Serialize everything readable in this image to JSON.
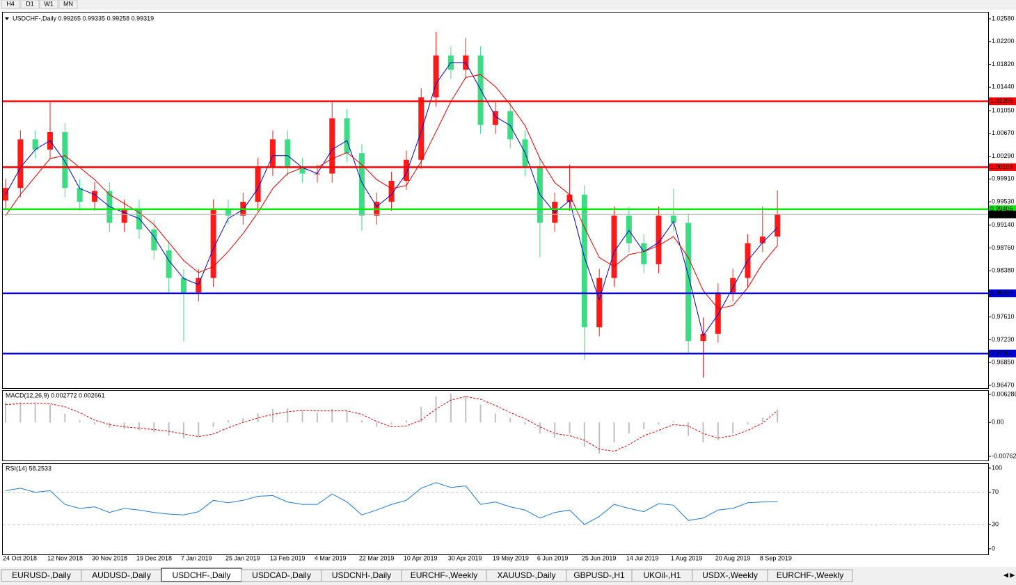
{
  "toolbar": {
    "timeframes": [
      "H4",
      "D1",
      "W1",
      "MN"
    ]
  },
  "chart_data": [
    {
      "type": "candlestick",
      "title": "USDCHF-,Daily  0.99265 0.99335 0.99258 0.99319",
      "categories": [
        "24 Oct 2018",
        null,
        null,
        "12 Nov 2018",
        null,
        null,
        "30 Nov 2018",
        null,
        null,
        "19 Dec 2018",
        null,
        null,
        "7 Jan 2019",
        null,
        null,
        "25 Jan 2019",
        null,
        null,
        "13 Feb 2019",
        null,
        null,
        "4 Mar 2019",
        null,
        null,
        "22 Mar 2019",
        null,
        null,
        "10 Apr 2019",
        null,
        null,
        "30 Apr 2019",
        null,
        null,
        "19 May 2019",
        null,
        null,
        "6 Jun 2019",
        null,
        null,
        "25 Jun 2019",
        null,
        null,
        "14 Jul 2019",
        null,
        null,
        "1 Aug 2019",
        null,
        null,
        "20 Aug 2019",
        null,
        null,
        "8 Sep 2019",
        null
      ],
      "open": [
        0.9955,
        0.9976,
        1.0057,
        1.004,
        1.0069,
        0.9976,
        0.9953,
        0.9971,
        0.9918,
        0.9942,
        0.9907,
        0.9872,
        0.9826,
        0.9802,
        0.9826,
        0.9942,
        0.993,
        0.9953,
        1.0011,
        1.0057,
        1.0011,
        1.0,
        1.0,
        1.0092,
        1.0034,
        0.993,
        0.9953,
        0.9988,
        1.0023,
        1.0127,
        1.0197,
        1.0173,
        1.0197,
        1.0081,
        1.0104,
        1.0057,
        1.0011,
        0.9918,
        0.9953,
        0.9965,
        0.9744,
        0.9826,
        0.993,
        0.9884,
        0.9849,
        0.993,
        0.9918,
        0.9721,
        0.9733,
        0.9802,
        0.9826,
        0.9884,
        0.9895
      ],
      "high": [
        0.9991,
        1.0072,
        1.0072,
        1.0121,
        1.0084,
        0.9991,
        0.9986,
        0.9986,
        0.9957,
        0.9957,
        0.9922,
        0.9887,
        0.9841,
        0.9841,
        0.9957,
        0.9957,
        0.9968,
        1.0026,
        1.0072,
        1.0072,
        1.0026,
        1.0015,
        1.0121,
        1.0107,
        1.0049,
        0.9968,
        1.0003,
        1.0038,
        1.0142,
        1.0236,
        1.0212,
        1.0226,
        1.0212,
        1.0119,
        1.0119,
        1.0072,
        1.0026,
        0.9968,
        1.0015,
        0.998,
        0.9841,
        0.9945,
        0.9945,
        0.9899,
        0.9945,
        0.9975,
        0.9933,
        0.976,
        0.9817,
        0.9841,
        0.9899,
        0.9945,
        0.9972
      ],
      "low": [
        0.994,
        0.9961,
        1.0025,
        1.0025,
        0.9961,
        0.9938,
        0.9938,
        0.9903,
        0.9903,
        0.9892,
        0.9857,
        0.98,
        0.972,
        0.9787,
        0.9811,
        0.9915,
        0.9915,
        0.9938,
        0.9996,
        0.9996,
        0.9985,
        0.9985,
        0.9985,
        1.0019,
        0.9905,
        0.9915,
        0.9938,
        0.9973,
        1.0008,
        1.0112,
        1.0158,
        1.0158,
        1.0066,
        1.0066,
        1.0042,
        0.9996,
        0.986,
        0.9903,
        0.9938,
        0.969,
        0.9729,
        0.9811,
        0.9869,
        0.9834,
        0.9834,
        0.9903,
        0.97,
        0.966,
        0.9718,
        0.9787,
        0.9811,
        0.9869,
        0.988
      ],
      "close": [
        0.9976,
        1.0057,
        1.004,
        1.0069,
        0.9976,
        0.9953,
        0.9971,
        0.9918,
        0.9942,
        0.9907,
        0.9872,
        0.9826,
        0.9802,
        0.9826,
        0.9942,
        0.993,
        0.9953,
        1.0011,
        1.0057,
        1.0011,
        1.0,
        1.0,
        1.0092,
        1.0034,
        0.993,
        0.9953,
        0.9988,
        1.0023,
        1.0127,
        1.0197,
        1.0173,
        1.0197,
        1.0081,
        1.0104,
        1.0057,
        1.0011,
        0.9918,
        0.9953,
        0.9965,
        0.9744,
        0.9826,
        0.993,
        0.9884,
        0.9849,
        0.993,
        0.9918,
        0.9721,
        0.9733,
        0.9802,
        0.9826,
        0.9884,
        0.9895,
        0.99319
      ],
      "up_color": "#ff1a1a",
      "down_color": "#3ddc84",
      "lines": [
        {
          "color": "#0000cc",
          "values": [
            0.9965,
            1.001,
            1.004,
            1.0055,
            1.002,
            0.9975,
            0.9965,
            0.9945,
            0.9935,
            0.9925,
            0.9895,
            0.9855,
            0.9825,
            0.9815,
            0.9875,
            0.9925,
            0.994,
            0.9975,
            1.003,
            1.003,
            1.001,
            1.0,
            1.004,
            1.0055,
            0.9985,
            0.9945,
            0.9965,
            1.0,
            1.007,
            1.015,
            1.0185,
            1.0185,
            1.014,
            1.0095,
            1.008,
            1.0035,
            0.9965,
            0.9935,
            0.9955,
            0.986,
            0.979,
            0.987,
            0.9905,
            0.987,
            0.9885,
            0.992,
            0.983,
            0.973,
            0.9765,
            0.981,
            0.9855,
            0.9885,
            0.991
          ]
        },
        {
          "color": "#dd0000",
          "values": [
            0.993,
            0.9965,
            0.9995,
            1.0025,
            1.003,
            1.001,
            0.999,
            0.9965,
            0.995,
            0.9935,
            0.9915,
            0.9885,
            0.9855,
            0.9835,
            0.9845,
            0.987,
            0.99,
            0.9935,
            0.9975,
            1.0,
            1.001,
            1.001,
            1.0025,
            1.0035,
            1.0015,
            0.999,
            0.9975,
            0.998,
            1.002,
            1.007,
            1.012,
            1.016,
            1.0165,
            1.0145,
            1.0115,
            1.008,
            1.0025,
            0.9985,
            0.9965,
            0.991,
            0.986,
            0.9845,
            0.9865,
            0.987,
            0.988,
            0.9895,
            0.986,
            0.9805,
            0.9775,
            0.978,
            0.981,
            0.985,
            0.988
          ]
        }
      ],
      "hlines": [
        {
          "value": 1.01205,
          "value_label": "1.01205",
          "color": "#ff0000"
        },
        {
          "value": 1.00106,
          "value_label": "1.00106",
          "color": "#ff0000"
        },
        {
          "value": 0.99406,
          "value_label": "0.99406",
          "color": "#00ee00"
        },
        {
          "value": 0.98004,
          "value_label": "0.98004",
          "color": "#0000dd"
        },
        {
          "value": 0.97001,
          "value_label": "0.97001",
          "color": "#0000dd"
        }
      ],
      "last_price": {
        "value": 0.99319,
        "value_label": "0.99319"
      },
      "ylim": [
        0.96424,
        1.02696
      ],
      "yticks": [
        {
          "value": 1.0258,
          "label": "1.02580"
        },
        {
          "value": 1.022,
          "label": "1.02200"
        },
        {
          "value": 1.0182,
          "label": "1.01820"
        },
        {
          "value": 1.0144,
          "label": "1.01440"
        },
        {
          "value": 1.0105,
          "label": "1.01050"
        },
        {
          "value": 1.0067,
          "label": "1.00670"
        },
        {
          "value": 1.0029,
          "label": "1.00290"
        },
        {
          "value": 0.9991,
          "label": "0.99910"
        },
        {
          "value": 0.9953,
          "label": "0.99530"
        },
        {
          "value": 0.9914,
          "label": "0.99140"
        },
        {
          "value": 0.9876,
          "label": "0.98760"
        },
        {
          "value": 0.9838,
          "label": "0.98380"
        },
        {
          "value": 0.9761,
          "label": "0.97610"
        },
        {
          "value": 0.9723,
          "label": "0.97230"
        },
        {
          "value": 0.9685,
          "label": "0.96850"
        },
        {
          "value": 0.9647,
          "label": "0.96470"
        }
      ]
    },
    {
      "type": "macd",
      "title": "MACD(12,26,9) 0.002772 0.002661",
      "color": "#c0c0c0",
      "values": [
        0.0045,
        0.0045,
        0.0043,
        0.004,
        0.002,
        0.0005,
        -0.0005,
        -0.0012,
        -0.0015,
        -0.0018,
        -0.0022,
        -0.003,
        -0.0036,
        -0.0032,
        -0.001,
        0.0005,
        0.001,
        0.002,
        0.003,
        0.0032,
        0.0028,
        0.0022,
        0.003,
        0.0025,
        0.0005,
        -0.001,
        -0.0005,
        0.0005,
        0.0035,
        0.0058,
        0.0065,
        0.006,
        0.004,
        0.002,
        0.001,
        -0.0005,
        -0.0025,
        -0.0035,
        -0.0025,
        -0.0055,
        -0.007,
        -0.0045,
        -0.0025,
        -0.0015,
        -0.0005,
        0.0003,
        -0.003,
        -0.0045,
        -0.004,
        -0.0025,
        -0.0005,
        0.001,
        0.002772
      ],
      "signal": {
        "color": "#dd0000",
        "values": [
          0.004,
          0.0042,
          0.0043,
          0.0042,
          0.0035,
          0.0022,
          0.0005,
          -0.0005,
          -0.001,
          -0.0013,
          -0.0016,
          -0.002,
          -0.0026,
          -0.0032,
          -0.0026,
          -0.0012,
          0.0,
          0.001,
          0.0018,
          0.0024,
          0.0027,
          0.0026,
          0.0026,
          0.0026,
          0.0018,
          0.0002,
          -0.001,
          -0.0008,
          0.0005,
          0.003,
          0.005,
          0.0058,
          0.0052,
          0.0038,
          0.0022,
          0.0008,
          -0.001,
          -0.0025,
          -0.003,
          -0.004,
          -0.006,
          -0.0065,
          -0.005,
          -0.003,
          -0.0018,
          -0.0005,
          -0.0008,
          -0.0025,
          -0.0035,
          -0.003,
          -0.0018,
          -0.0002,
          0.002661
        ]
      },
      "ylim": [
        -0.00856,
        0.007224
      ],
      "yticks": [
        0.006286,
        {
          "value": 0,
          "label": "0.00"
        },
        -0.00762
      ]
    },
    {
      "type": "line",
      "title": "RSI(14) 58.2533",
      "color": "#1e78c8",
      "values": [
        72,
        75,
        70,
        72,
        55,
        50,
        52,
        45,
        50,
        48,
        45,
        43,
        42,
        46,
        60,
        57,
        60,
        65,
        66,
        58,
        55,
        55,
        68,
        58,
        42,
        48,
        55,
        60,
        75,
        82,
        76,
        78,
        55,
        58,
        52,
        48,
        38,
        45,
        48,
        30,
        40,
        55,
        50,
        46,
        56,
        54,
        35,
        38,
        48,
        50,
        57,
        58,
        58.2533
      ],
      "levels": [
        70,
        30
      ],
      "ylim": [
        -7,
        106
      ],
      "yticks": [
        100,
        70,
        30,
        0
      ]
    }
  ],
  "tabs": [
    "EURUSD-,Daily",
    "AUDUSD-,Daily",
    "USDCHF-,Daily",
    "USDCAD-,Daily",
    "USDCNH-,Daily",
    "EURCHF-,Weekly",
    "XAUUSD-,Daily",
    "GBPUSD-,H1",
    "UKOil-,H1",
    "USDX-,Weekly",
    "EURCHF-,Weekly"
  ],
  "selected_tab": 2
}
